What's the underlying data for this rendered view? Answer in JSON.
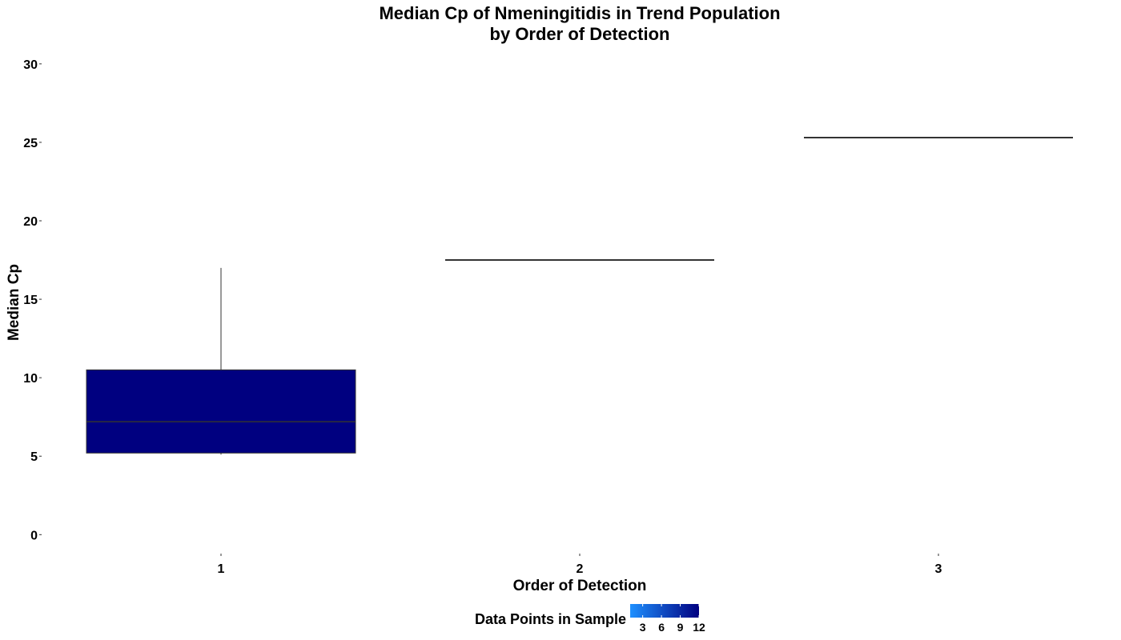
{
  "chart_data": {
    "type": "boxplot",
    "title": "Median Cp of Nmeningitidis in Trend Population",
    "subtitle": "by Order of Detection",
    "xlabel": "Order of Detection",
    "ylabel": "Median Cp",
    "categories": [
      "1",
      "2",
      "3"
    ],
    "ylim": [
      -0.8,
      30.4
    ],
    "yticks": [
      0,
      5,
      10,
      15,
      20,
      25,
      30
    ],
    "grid": false,
    "boxes": [
      {
        "category": "1",
        "min": 5.1,
        "q1": 5.2,
        "median": 7.2,
        "q3": 10.5,
        "max": 17.0,
        "n": 12
      },
      {
        "category": "2",
        "min": 17.5,
        "q1": 17.5,
        "median": 17.5,
        "q3": 17.5,
        "max": 17.5,
        "n": 1
      },
      {
        "category": "3",
        "min": 25.3,
        "q1": 25.3,
        "median": 25.3,
        "q3": 25.3,
        "max": 25.3,
        "n": 1
      }
    ],
    "legend": {
      "title": "Data Points in Sample",
      "position": "bottom",
      "ticks": [
        3,
        6,
        9,
        12
      ],
      "range": [
        1,
        12
      ],
      "colors": {
        "low": "#1e90ff",
        "high": "#000080"
      }
    },
    "colors": {
      "box_outline": "#333333",
      "median_line": "#333333",
      "whisker": "#333333"
    }
  }
}
